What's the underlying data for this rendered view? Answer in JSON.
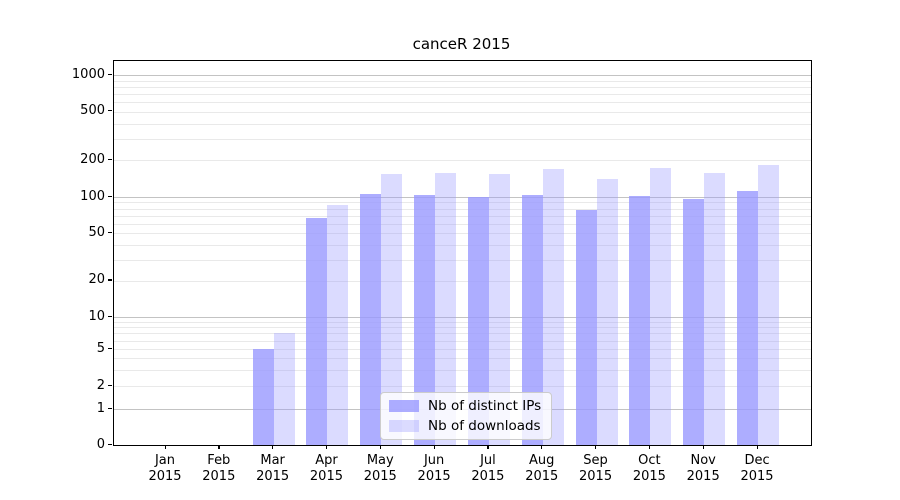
{
  "title": "canceR 2015",
  "chart_data": {
    "type": "bar",
    "title": "canceR 2015",
    "categories": [
      "Jan",
      "Feb",
      "Mar",
      "Apr",
      "May",
      "Jun",
      "Jul",
      "Aug",
      "Sep",
      "Oct",
      "Nov",
      "Dec"
    ],
    "category_year": "2015",
    "series": [
      {
        "name": "Nb of distinct IPs",
        "color": "rgba(153,153,255,0.8)",
        "values": [
          0,
          0,
          5,
          67,
          105,
          104,
          100,
          103,
          78,
          102,
          97,
          112
        ]
      },
      {
        "name": "Nb of downloads",
        "color": "rgba(153,153,255,0.35)",
        "values": [
          0,
          0,
          7,
          86,
          154,
          157,
          154,
          170,
          140,
          172,
          158,
          182
        ]
      }
    ],
    "yticks": [
      0,
      1,
      2,
      5,
      10,
      20,
      50,
      100,
      200,
      500,
      1000
    ],
    "scale": "symlog",
    "ylim": [
      0,
      1300
    ],
    "grid": "on",
    "legend_position": "lower center",
    "base_bar_color": "#9999ff",
    "major_grid_color": "#c3c3c3",
    "minor_grid_color": "#e9e9e9",
    "axis_color": "#000000"
  },
  "legend": {
    "items": [
      {
        "label": "Nb of distinct IPs"
      },
      {
        "label": "Nb of downloads"
      }
    ]
  }
}
